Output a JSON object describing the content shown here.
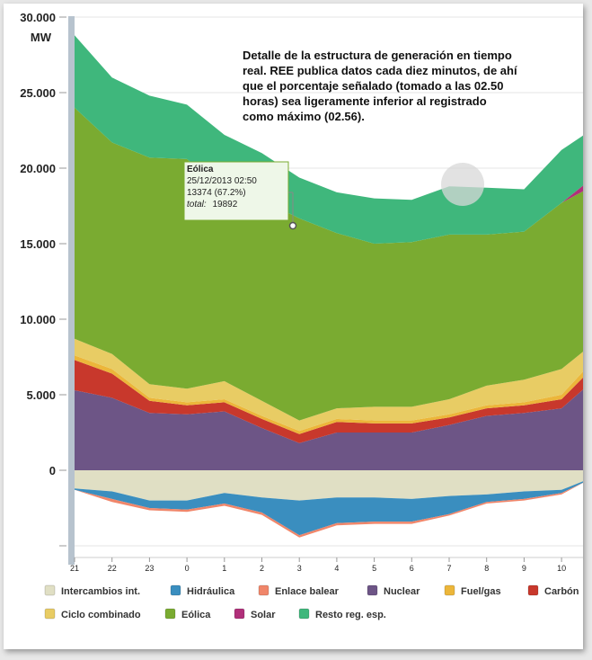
{
  "chart_data": {
    "type": "area",
    "stacked": true,
    "ylabel_unit": "MW",
    "y_ticks": [
      "30.000",
      "25.000",
      "20.000",
      "15.000",
      "10.000",
      "5.000",
      "0"
    ],
    "ylim": [
      -5000,
      30000
    ],
    "x_ticks": [
      "21",
      "22",
      "23",
      "0",
      "1",
      "2",
      "3",
      "4",
      "5",
      "6",
      "7",
      "8",
      "9",
      "10"
    ],
    "x_hours": [
      21,
      22,
      23,
      24,
      25,
      26,
      27,
      28,
      29,
      30,
      31,
      32,
      33,
      34,
      34.6
    ],
    "annotation": "Detalle de la estructura de generación en tiempo real. REE publica datos cada diez minutos, de ahí que el porcentaje señalado (tomado a las 02.50 horas) sea ligeramente inferior al registrado como máximo (02.56).",
    "tooltip": {
      "series": "Eólica",
      "datetime": "25/12/2013 02:50",
      "value_line": "13374 (67.2%)",
      "total_label": "total:",
      "total_value": "19892"
    },
    "negative_series": [
      {
        "name": "Intercambios int.",
        "color": "#e0dfc4",
        "values": [
          -1200,
          -1400,
          -2000,
          -2000,
          -1500,
          -1800,
          -2000,
          -1800,
          -1800,
          -1900,
          -1700,
          -1600,
          -1400,
          -1300,
          -700
        ]
      },
      {
        "name": "Hidráulica",
        "color": "#3a8ebf",
        "values": [
          -100,
          -500,
          -500,
          -600,
          -700,
          -1000,
          -2300,
          -1700,
          -1600,
          -1500,
          -1200,
          -500,
          -500,
          -200,
          -100
        ]
      },
      {
        "name": "Enlace balear",
        "color": "#f0866a",
        "values": [
          0,
          -200,
          -150,
          -150,
          -150,
          -150,
          -150,
          -150,
          -150,
          -150,
          -100,
          -100,
          -100,
          -100,
          0
        ]
      }
    ],
    "positive_series": [
      {
        "name": "Nuclear",
        "color": "#6d5586",
        "values": [
          5300,
          4800,
          3800,
          3700,
          3900,
          2800,
          1800,
          2500,
          2500,
          2500,
          3000,
          3600,
          3800,
          4100,
          5400
        ]
      },
      {
        "name": "Carbón",
        "color": "#c8382c",
        "values": [
          2000,
          1600,
          800,
          600,
          600,
          600,
          600,
          700,
          600,
          600,
          500,
          500,
          500,
          600,
          800
        ]
      },
      {
        "name": "Fuel/gas",
        "color": "#ecb63a",
        "values": [
          300,
          300,
          200,
          200,
          200,
          200,
          200,
          200,
          200,
          200,
          200,
          200,
          200,
          300,
          400
        ]
      },
      {
        "name": "Ciclo combinado",
        "color": "#e8cc64",
        "values": [
          1100,
          1000,
          900,
          900,
          1200,
          1000,
          700,
          700,
          900,
          900,
          1000,
          1300,
          1500,
          1700,
          1300
        ]
      },
      {
        "name": "Eólica",
        "color": "#7aab31",
        "values": [
          15300,
          14000,
          15000,
          15200,
          12600,
          13300,
          13374,
          11600,
          10800,
          10900,
          10900,
          10000,
          9800,
          11000,
          10600
        ]
      },
      {
        "name": "Solar",
        "color": "#b0307a",
        "values": [
          0,
          0,
          0,
          0,
          0,
          0,
          0,
          0,
          0,
          0,
          0,
          0,
          0,
          0,
          400
        ]
      },
      {
        "name": "Resto reg. esp.",
        "color": "#3fb77c",
        "values": [
          4800,
          4300,
          4100,
          3600,
          3700,
          3100,
          2700,
          2700,
          3000,
          2800,
          3200,
          3100,
          2800,
          3500,
          3300
        ]
      }
    ],
    "legend": [
      "Intercambios int.",
      "Hidráulica",
      "Enlace balear",
      "Nuclear",
      "Fuel/gas",
      "Carbón",
      "Ciclo combinado",
      "Eólica",
      "Solar",
      "Resto reg. esp."
    ],
    "legend_position": "bottom",
    "grid": true
  }
}
